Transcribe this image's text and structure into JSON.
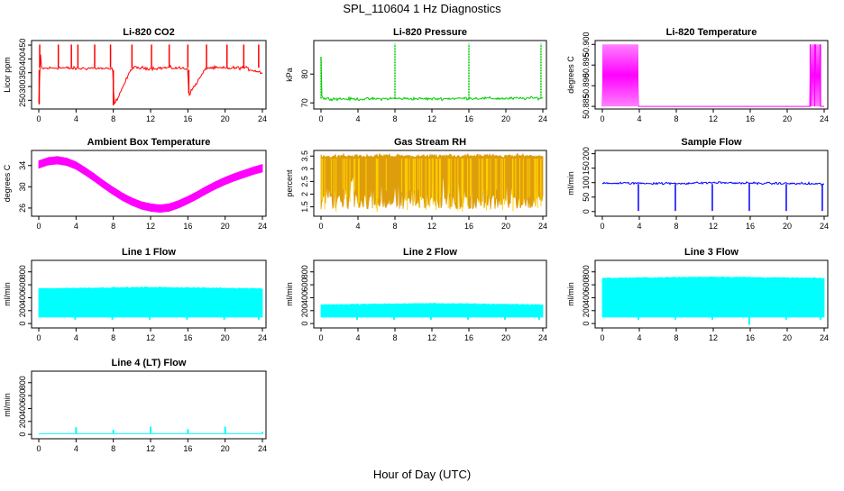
{
  "title": "SPL_110604  1 Hz Diagnostics",
  "xlabel": "Hour of Day (UTC)",
  "colors": {
    "red": "#ff0000",
    "green": "#00cc00",
    "magenta": "#ff00ff",
    "orange": "#dd9900",
    "blue": "#0000ff",
    "cyan": "#00ffff"
  },
  "chart_data": [
    {
      "type": "line",
      "title": "Li-820 CO2",
      "ylabel": "Licor ppm",
      "color": "#ff0000",
      "xlim": [
        0,
        24
      ],
      "ylim": [
        225,
        460
      ],
      "xticks": [
        0,
        4,
        8,
        12,
        16,
        20,
        24
      ],
      "yticks": [
        250,
        300,
        350,
        400,
        450
      ],
      "series": [
        {
          "description": "baseline ~365 ppm with periodic spikes to ~450 ppm and dips",
          "x": [
            0,
            0.2,
            0.3,
            2,
            4,
            6,
            8,
            8.05,
            10,
            12,
            14,
            16,
            16.1,
            18,
            20,
            22,
            24
          ],
          "y": [
            240,
            420,
            365,
            368,
            365,
            367,
            362,
            230,
            368,
            366,
            368,
            365,
            270,
            368,
            366,
            368,
            350
          ]
        }
      ]
    },
    {
      "type": "line",
      "title": "Li-820 Pressure",
      "ylabel": "kPa",
      "color": "#00cc00",
      "xlim": [
        0,
        24
      ],
      "ylim": [
        68.5,
        91
      ],
      "xticks": [
        0,
        4,
        8,
        12,
        16,
        20,
        24
      ],
      "yticks": [
        70,
        80
      ],
      "series": [
        {
          "description": "steady ~71.5 kPa with spikes near hours 0, 8, 16, 24",
          "x": [
            0,
            0.1,
            0.3,
            4,
            8,
            12,
            16,
            20,
            24
          ],
          "y": [
            86,
            72,
            71.5,
            71.3,
            71.5,
            71.4,
            71.6,
            71.5,
            71.7
          ]
        }
      ]
    },
    {
      "type": "line",
      "title": "Li-820 Temperature",
      "ylabel": "degrees C",
      "color": "#ff00ff",
      "xlim": [
        0,
        24
      ],
      "ylim": [
        50.8848,
        50.9005
      ],
      "xticks": [
        0,
        4,
        8,
        12,
        16,
        20,
        24
      ],
      "yticks": [
        50.885,
        50.89,
        50.895,
        50.9
      ],
      "series": [
        {
          "description": "oscillates between 50.885 and 50.90 before hour 4 and after hour 22, flat at 50.885 otherwise",
          "x": [
            0,
            4,
            22,
            24
          ],
          "y": [
            50.885,
            50.885,
            50.885,
            50.885
          ]
        }
      ]
    },
    {
      "type": "line",
      "title": "Ambient Box Temperature",
      "ylabel": "degrees C",
      "color": "#ff00ff",
      "xlim": [
        0,
        24
      ],
      "ylim": [
        24.8,
        36.5
      ],
      "xticks": [
        0,
        4,
        8,
        12,
        16,
        20,
        24
      ],
      "yticks": [
        26,
        30,
        34
      ],
      "series": [
        {
          "x": [
            0,
            1,
            2,
            3,
            4,
            5,
            6,
            7,
            8,
            9,
            10,
            11,
            12,
            13,
            14,
            15,
            16,
            17,
            18,
            19,
            20,
            21,
            22,
            23,
            24
          ],
          "y": [
            34.2,
            34.8,
            35.0,
            34.7,
            34.0,
            32.9,
            31.7,
            30.4,
            29.2,
            28.1,
            27.2,
            26.5,
            26.1,
            25.9,
            26.1,
            26.7,
            27.5,
            28.4,
            29.4,
            30.3,
            31.1,
            31.8,
            32.4,
            33.0,
            33.5
          ]
        }
      ]
    },
    {
      "type": "line",
      "title": "Gas Stream RH",
      "ylabel": "percent",
      "color": "#dd9900",
      "xlim": [
        0,
        24
      ],
      "ylim": [
        1.2,
        3.65
      ],
      "xticks": [
        0,
        4,
        8,
        12,
        16,
        20,
        24
      ],
      "yticks": [
        1.5,
        2.0,
        2.5,
        3.0,
        3.5
      ],
      "series": [
        {
          "description": "dense noisy band between ~1.3 and ~3.5 percent across the whole day",
          "x": [
            0,
            12,
            24
          ],
          "y": [
            3.4,
            3.4,
            3.5
          ]
        }
      ]
    },
    {
      "type": "line",
      "title": "Sample Flow",
      "ylabel": "ml/min",
      "color": "#0000ff",
      "xlim": [
        0,
        24
      ],
      "ylim": [
        -10,
        205
      ],
      "xticks": [
        0,
        4,
        8,
        12,
        16,
        20,
        24
      ],
      "yticks": [
        0,
        50,
        100,
        150,
        200
      ],
      "series": [
        {
          "description": "steady ~98 ml/min with dips to ~0 near hours 4, 8, 12, 16, 20, 24",
          "x": [
            0,
            4,
            8,
            12,
            16,
            20,
            24
          ],
          "y": [
            98,
            98,
            97,
            100,
            98,
            97,
            95
          ]
        }
      ]
    },
    {
      "type": "area",
      "title": "Line 1 Flow",
      "ylabel": "ml/min",
      "color": "#00ffff",
      "xlim": [
        0,
        24
      ],
      "ylim": [
        -40,
        950
      ],
      "xticks": [
        0,
        4,
        8,
        12,
        16,
        20,
        24
      ],
      "yticks": [
        0,
        200,
        400,
        600,
        800
      ],
      "series": [
        {
          "description": "band between ~100 and ~550 ml/min",
          "x": [
            0,
            12,
            24
          ],
          "y": [
            540,
            560,
            540
          ]
        }
      ]
    },
    {
      "type": "area",
      "title": "Line 2 Flow",
      "ylabel": "ml/min",
      "color": "#00ffff",
      "xlim": [
        0,
        24
      ],
      "ylim": [
        -40,
        950
      ],
      "xticks": [
        0,
        4,
        8,
        12,
        16,
        20,
        24
      ],
      "yticks": [
        0,
        200,
        400,
        600,
        800
      ],
      "series": [
        {
          "description": "band between ~100 and ~300 ml/min",
          "x": [
            0,
            12,
            24
          ],
          "y": [
            290,
            310,
            290
          ]
        }
      ]
    },
    {
      "type": "area",
      "title": "Line 3 Flow",
      "ylabel": "ml/min",
      "color": "#00ffff",
      "xlim": [
        0,
        24
      ],
      "ylim": [
        -40,
        950
      ],
      "xticks": [
        0,
        4,
        8,
        12,
        16,
        20,
        24
      ],
      "yticks": [
        0,
        200,
        400,
        600,
        800
      ],
      "series": [
        {
          "description": "band between ~100 and ~700 ml/min",
          "x": [
            0,
            12,
            24
          ],
          "y": [
            700,
            720,
            700
          ]
        }
      ]
    },
    {
      "type": "line",
      "title": "Line 4 (LT) Flow",
      "ylabel": "ml/min",
      "color": "#00ffff",
      "xlim": [
        0,
        24
      ],
      "ylim": [
        -40,
        950
      ],
      "xticks": [
        0,
        4,
        8,
        12,
        16,
        20,
        24
      ],
      "yticks": [
        0,
        200,
        400,
        600,
        800
      ],
      "series": [
        {
          "description": "near zero (~10 ml/min) with small spikes at hours 4, 8, 12, 16, 20",
          "x": [
            0,
            4,
            8,
            12,
            16,
            20,
            24
          ],
          "y": [
            10,
            110,
            70,
            120,
            80,
            120,
            40
          ]
        }
      ]
    }
  ]
}
